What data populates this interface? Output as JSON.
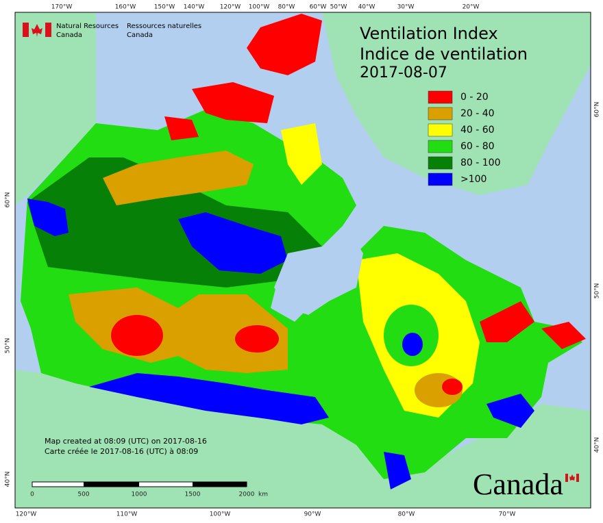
{
  "header": {
    "agency_en": "Natural Resources",
    "country_en": "Canada",
    "agency_fr": "Ressources naturelles",
    "country_fr": "Canada"
  },
  "title": {
    "line1": "Ventilation Index",
    "line2": "Indice de ventilation",
    "date": "2017-08-07"
  },
  "legend": [
    {
      "label": "0 - 20",
      "color": "#ff0000"
    },
    {
      "label": "20 - 40",
      "color": "#daa000"
    },
    {
      "label": "40 - 60",
      "color": "#ffff00"
    },
    {
      "label": "60 - 80",
      "color": "#22dd11"
    },
    {
      "label": "80 - 100",
      "color": "#078007"
    },
    {
      "label": ">100",
      "color": "#0000ff"
    }
  ],
  "graticule": {
    "top": [
      "170°W",
      "160°W",
      "150°W",
      "140°W",
      "120°W",
      "100°W",
      "80°W",
      "60°W",
      "50°W",
      "40°W",
      "30°W",
      "20°W"
    ],
    "bottom": [
      "120°W",
      "110°W",
      "100°W",
      "90°W",
      "80°W",
      "70°W"
    ],
    "left": [
      "60°N",
      "50°N",
      "40°N"
    ],
    "right": [
      "60°N",
      "50°N",
      "40°N"
    ]
  },
  "notes": {
    "created_en": "Map created at 08:09 (UTC) on 2017-08-16",
    "created_fr": "Carte créée le 2017-08-16 (UTC) à 08:09"
  },
  "scale_bar": [
    "0",
    "500",
    "1000",
    "1500",
    "2000",
    "km"
  ],
  "wordmark": "Canada"
}
